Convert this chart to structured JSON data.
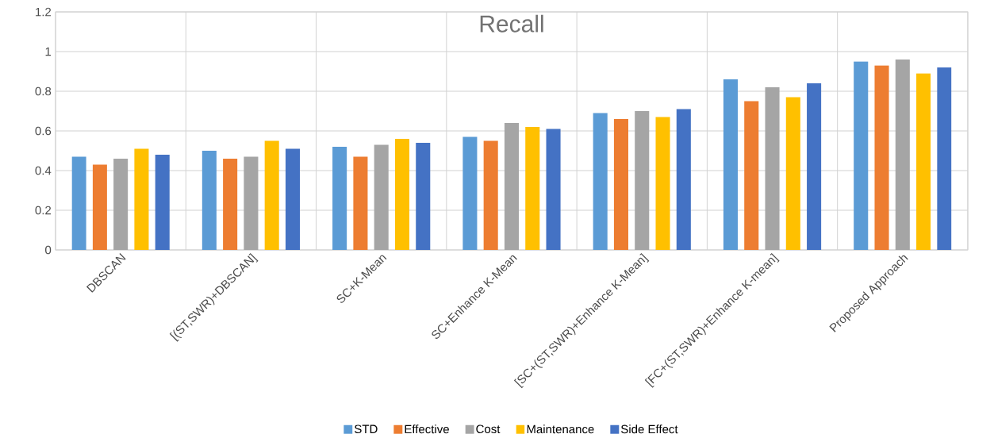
{
  "chart_data": {
    "type": "bar",
    "title": "Recall",
    "categories": [
      "DBSCAN",
      "[(ST,SWR)+DBSCAN]",
      "SC+K-Mean",
      "SC+Enhance K-Mean",
      "[SC+(ST,SWR)+Enhance K-Mean]",
      "[FC+(ST,SWR)+Enhance K-mean]",
      "Proposed Approach"
    ],
    "series": [
      {
        "name": "STD",
        "color": "#5b9bd5",
        "values": [
          0.47,
          0.5,
          0.52,
          0.57,
          0.69,
          0.86,
          0.95
        ]
      },
      {
        "name": "Effective",
        "color": "#ed7d31",
        "values": [
          0.43,
          0.46,
          0.47,
          0.55,
          0.66,
          0.75,
          0.93
        ]
      },
      {
        "name": "Cost",
        "color": "#a5a5a5",
        "values": [
          0.46,
          0.47,
          0.53,
          0.64,
          0.7,
          0.82,
          0.96
        ]
      },
      {
        "name": "Maintenance",
        "color": "#ffc000",
        "values": [
          0.51,
          0.55,
          0.56,
          0.62,
          0.67,
          0.77,
          0.89
        ]
      },
      {
        "name": "Side Effect",
        "color": "#4472c4",
        "values": [
          0.48,
          0.51,
          0.54,
          0.61,
          0.71,
          0.84,
          0.92
        ]
      }
    ],
    "ylim": [
      0,
      1.2
    ],
    "yticks": [
      0,
      0.2,
      0.4,
      0.6,
      0.8,
      1,
      1.2
    ],
    "grid": true,
    "legend": "bottom"
  }
}
